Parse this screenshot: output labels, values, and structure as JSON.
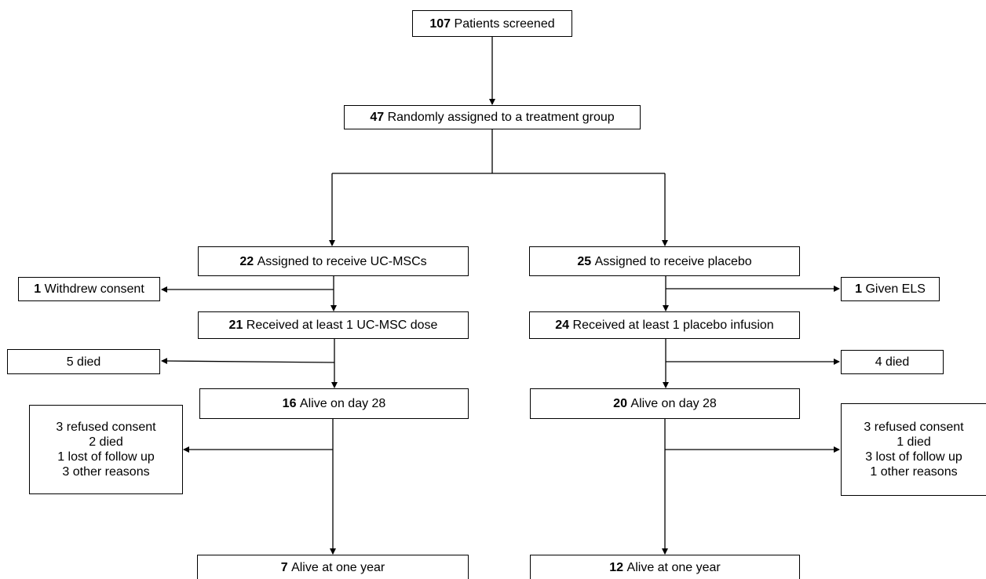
{
  "boxes": {
    "screened": {
      "count": "107",
      "text": "Patients screened"
    },
    "randomized": {
      "count": "47",
      "text": "Randomly assigned to a treatment group"
    },
    "assigned_msc": {
      "count": "22",
      "text": "Assigned to receive UC-MSCs"
    },
    "assigned_placebo": {
      "count": "25",
      "text": "Assigned to receive placebo"
    },
    "withdrew": {
      "count": "1",
      "text": "Withdrew consent"
    },
    "given_els": {
      "count": "1",
      "text": "Given ELS"
    },
    "received_msc": {
      "count": "21",
      "text": "Received at least 1 UC-MSC dose"
    },
    "received_placebo": {
      "count": "24",
      "text": "Received at least 1 placebo infusion"
    },
    "died_msc": {
      "text": "5 died"
    },
    "died_placebo": {
      "text": "4 died"
    },
    "alive28_msc": {
      "count": "16",
      "text": "Alive on day 28"
    },
    "alive28_placebo": {
      "count": "20",
      "text": "Alive on day 28"
    },
    "lost_msc": {
      "lines": [
        "3 refused consent",
        "2 died",
        "1 lost of follow up",
        "3 other reasons"
      ]
    },
    "lost_placebo": {
      "lines": [
        "3 refused consent",
        "1 died",
        "3 lost of follow up",
        "1 other reasons"
      ]
    },
    "alive1y_msc": {
      "count": "7",
      "text": "Alive at one year"
    },
    "alive1y_placebo": {
      "count": "12",
      "text": "Alive at one year"
    }
  }
}
